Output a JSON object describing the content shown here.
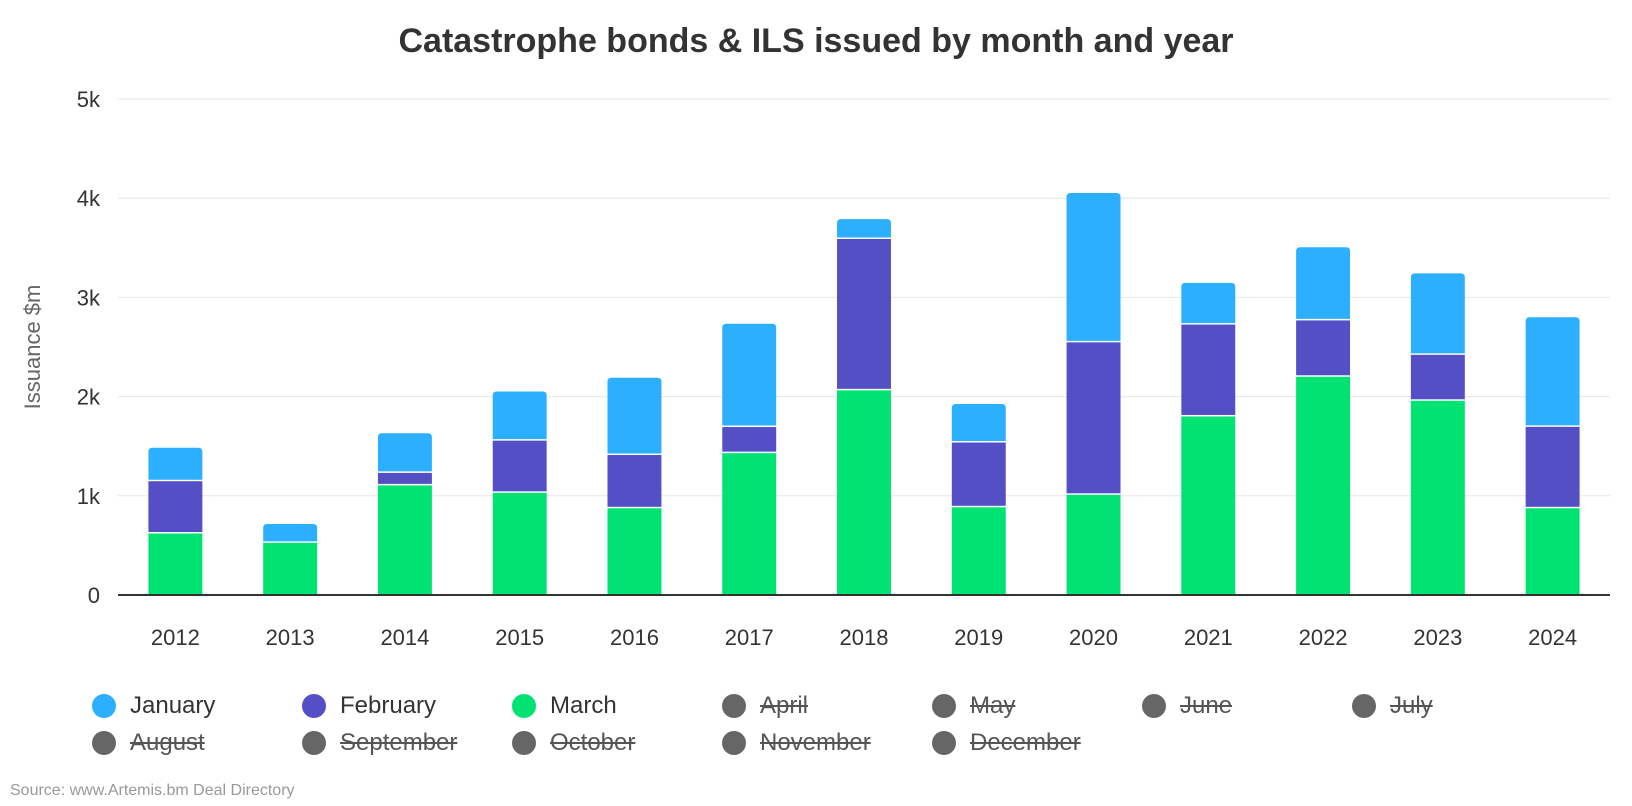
{
  "chart_data": {
    "type": "bar",
    "stacked": true,
    "title": "Catastrophe bonds & ILS issued by month and year",
    "xlabel": "",
    "ylabel": "Issuance $m",
    "ylim": [
      0,
      5000
    ],
    "yticks": [
      "0",
      "1k",
      "2k",
      "3k",
      "4k",
      "5k"
    ],
    "ytick_values": [
      0,
      1000,
      2000,
      3000,
      4000,
      5000
    ],
    "grid": true,
    "legend_position": "bottom",
    "categories": [
      "2012",
      "2013",
      "2014",
      "2015",
      "2016",
      "2017",
      "2018",
      "2019",
      "2020",
      "2021",
      "2022",
      "2023",
      "2024"
    ],
    "series": [
      {
        "name": "March",
        "color": "#00e272",
        "values": [
          620,
          526,
          1105,
          1030,
          874,
          1430,
          2063,
          884,
          1010,
          1800,
          2200,
          1958,
          874
        ]
      },
      {
        "name": "February",
        "color": "#544fc5",
        "values": [
          527,
          0,
          126,
          526,
          537,
          263,
          1526,
          653,
          1537,
          926,
          568,
          463,
          821
        ]
      },
      {
        "name": "January",
        "color": "#2caffe",
        "values": [
          337,
          190,
          400,
          495,
          779,
          1042,
          200,
          389,
          1505,
          421,
          737,
          821,
          1105
        ]
      }
    ],
    "legend": [
      {
        "name": "January",
        "color": "#2caffe",
        "visible": true
      },
      {
        "name": "February",
        "color": "#544fc5",
        "visible": true
      },
      {
        "name": "March",
        "color": "#00e272",
        "visible": true
      },
      {
        "name": "April",
        "color": "#666666",
        "visible": false
      },
      {
        "name": "May",
        "color": "#666666",
        "visible": false
      },
      {
        "name": "June",
        "color": "#666666",
        "visible": false
      },
      {
        "name": "July",
        "color": "#666666",
        "visible": false
      },
      {
        "name": "August",
        "color": "#666666",
        "visible": false
      },
      {
        "name": "September",
        "color": "#666666",
        "visible": false
      },
      {
        "name": "October",
        "color": "#666666",
        "visible": false
      },
      {
        "name": "November",
        "color": "#666666",
        "visible": false
      },
      {
        "name": "December",
        "color": "#666666",
        "visible": false
      }
    ]
  },
  "source": "Source: www.Artemis.bm Deal Directory"
}
